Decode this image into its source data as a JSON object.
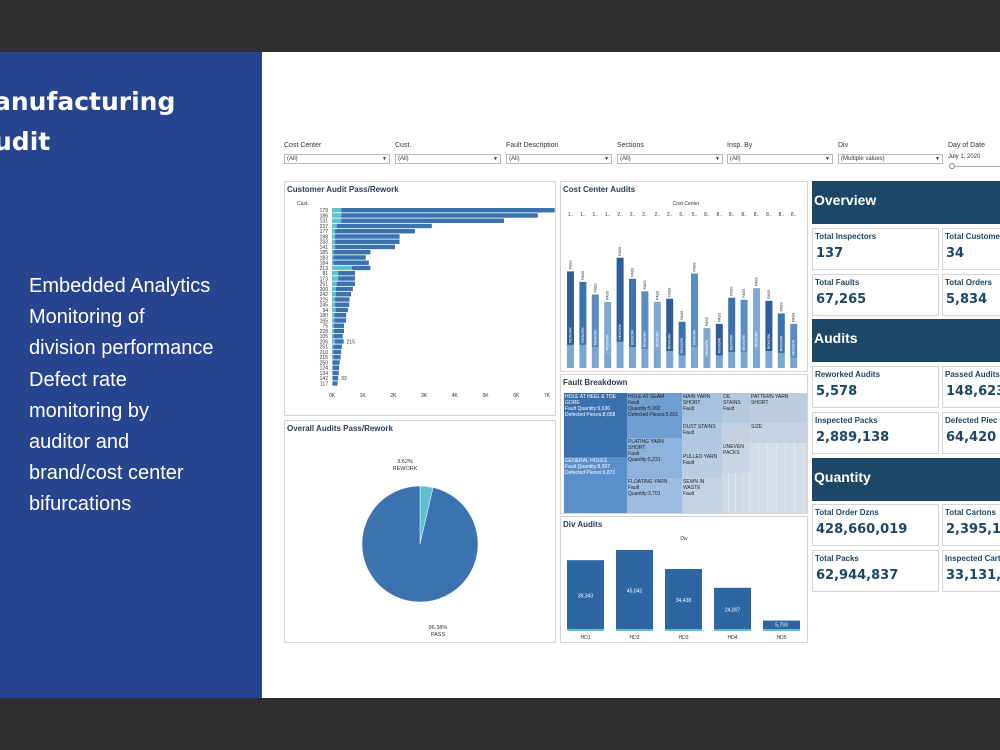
{
  "slide": {
    "title_line1": "anufacturing",
    "title_line2": "udit",
    "bullets": [
      "Embedded Analytics",
      "Monitoring of",
      "division performance",
      "Defect rate",
      "monitoring by",
      "auditor and",
      "brand/cost center",
      "bifurcations"
    ]
  },
  "filters": [
    {
      "label": "Cost Center",
      "value": "(All)"
    },
    {
      "label": "Cust.",
      "value": "(All)"
    },
    {
      "label": "Fault Description",
      "value": "(All)"
    },
    {
      "label": "Sections",
      "value": "(All)"
    },
    {
      "label": "Insp. By",
      "value": "(All)"
    },
    {
      "label": "Div",
      "value": "(Multiple values)"
    },
    {
      "label": "Day of Date",
      "value": "July 1, 2020"
    }
  ],
  "customer_chart": {
    "title": "Customer Audit Pass/Rework",
    "axis_header": "Cust.",
    "categories": [
      "179",
      "186",
      "131",
      "237",
      "177",
      "198",
      "233",
      "141",
      "185",
      "183",
      "184",
      "213",
      "81",
      "173",
      "251",
      "200",
      "242",
      "225",
      "245",
      "94",
      "180",
      "165",
      "75",
      "228",
      "105",
      "206",
      "251",
      "210",
      "215",
      "250",
      "124",
      "134",
      "142",
      "117"
    ],
    "pass": [
      6950,
      6400,
      5300,
      3100,
      2600,
      2100,
      2100,
      1950,
      1200,
      1050,
      1150,
      600,
      550,
      550,
      600,
      550,
      500,
      470,
      460,
      400,
      380,
      380,
      330,
      330,
      300,
      290,
      270,
      260,
      240,
      220,
      200,
      190,
      170,
      150
    ],
    "rework": [
      300,
      300,
      300,
      150,
      100,
      100,
      100,
      100,
      50,
      50,
      50,
      650,
      200,
      200,
      150,
      130,
      120,
      100,
      100,
      120,
      80,
      80,
      60,
      60,
      50,
      90,
      50,
      40,
      40,
      30,
      30,
      30,
      30,
      30
    ],
    "labels": {
      "206": "215",
      "142": "33"
    },
    "xticks": [
      "0K",
      "1K",
      "2K",
      "3K",
      "4K",
      "5K",
      "6K",
      "7K"
    ],
    "xmax": 7000
  },
  "overall_chart": {
    "title": "Overall Audits Pass/Rework",
    "slices": [
      {
        "name": "PASS",
        "value": 96.38,
        "label": "96.38%"
      },
      {
        "name": "REWORK",
        "value": 3.62,
        "label": "3.62%"
      }
    ]
  },
  "cost_center_chart": {
    "title": "Cost Center Audits",
    "axis_header": "Cost Center",
    "columns": [
      "1..",
      "1..",
      "1..",
      "1..",
      "2..",
      "2..",
      "2..",
      "2..",
      "2..",
      "5..",
      "5..",
      "8..",
      "8..",
      "8..",
      "8..",
      "8..",
      "8..",
      "8..",
      "8.."
    ],
    "pass": [
      70,
      60,
      50,
      48,
      80,
      65,
      55,
      45,
      50,
      32,
      70,
      28,
      30,
      52,
      50,
      58,
      48,
      38,
      32
    ],
    "rework": [
      22,
      22,
      20,
      15,
      25,
      20,
      18,
      18,
      16,
      12,
      20,
      10,
      12,
      15,
      15,
      18,
      16,
      14,
      10
    ],
    "pass_label": "PASS",
    "rework_label": "REWORK"
  },
  "fault_chart": {
    "title": "Fault Breakdown",
    "tiles": [
      {
        "name": "HOLE AT HEEL & TOE GORE",
        "line2": "Fault Quantity:9,636",
        "line3": "Defected Pieces:8,668"
      },
      {
        "name": "HOLE AT SEAM",
        "line2": "Fault",
        "line3": "Quantity:5,992",
        "line4": "Defected Pieces:5,831"
      },
      {
        "name": "MAIN YARN SHORT",
        "line2": "Fault"
      },
      {
        "name": "OIL STAINS",
        "line2": "Fault"
      },
      {
        "name": "PATTERN YARN SHORT"
      },
      {
        "name": "DUST STAINS",
        "line2": "Fault"
      },
      {
        "name": "SIZE"
      },
      {
        "name": "PLATING YARN SHORT",
        "line2": "Fault",
        "line3": "Quantity:5,231"
      },
      {
        "name": "PULLED YARN",
        "line2": "Fault"
      },
      {
        "name": "UNEVEN PACKS"
      },
      {
        "name": "GENERAL HOLES",
        "line2": "Fault Quantity:8,307",
        "line3": "Defected Pieces:6,871"
      },
      {
        "name": "FLOATING YARN",
        "line2": "Fault",
        "line3": "Quantity:3,701"
      },
      {
        "name": "SEWN IN WASTE",
        "line2": "Fault"
      }
    ]
  },
  "div_chart": {
    "title": "Div Audits",
    "axis_header": "Div",
    "categories": [
      "HD1",
      "HD2",
      "HD3",
      "HD4",
      "HD5"
    ],
    "values": [
      39343,
      45042,
      34438,
      24007,
      5793
    ],
    "labels": [
      "39,343",
      "45,042",
      "34,438",
      "24,007",
      "5,793"
    ]
  },
  "sections": [
    {
      "header": "Overview",
      "kpis": [
        {
          "label": "Total Inspectors",
          "value": "137"
        },
        {
          "label": "Total Custome",
          "value": "34"
        },
        {
          "label": "Total Faults",
          "value": "67,265"
        },
        {
          "label": "Total Orders",
          "value": "5,834"
        }
      ]
    },
    {
      "header": "Audits",
      "kpis": [
        {
          "label": "Reworked Audits",
          "value": "5,578"
        },
        {
          "label": "Passed Audits",
          "value": "148,623"
        },
        {
          "label": "Inspected Packs",
          "value": "2,889,138"
        },
        {
          "label": "Defected Piec",
          "value": "64,420"
        }
      ]
    },
    {
      "header": "Quantity",
      "kpis": [
        {
          "label": "Total Order Dzns",
          "value": "428,660,019"
        },
        {
          "label": "Total Cartons",
          "value": "2,395,1"
        },
        {
          "label": "Total Packs",
          "value": "62,944,837"
        },
        {
          "label": "Inspected Cart",
          "value": "33,131,8"
        }
      ]
    }
  ],
  "colors": {
    "slide_blue": "#27458e",
    "pass": "#3b73b0",
    "rework": "#5fc1d2",
    "header": "#1d4766"
  }
}
